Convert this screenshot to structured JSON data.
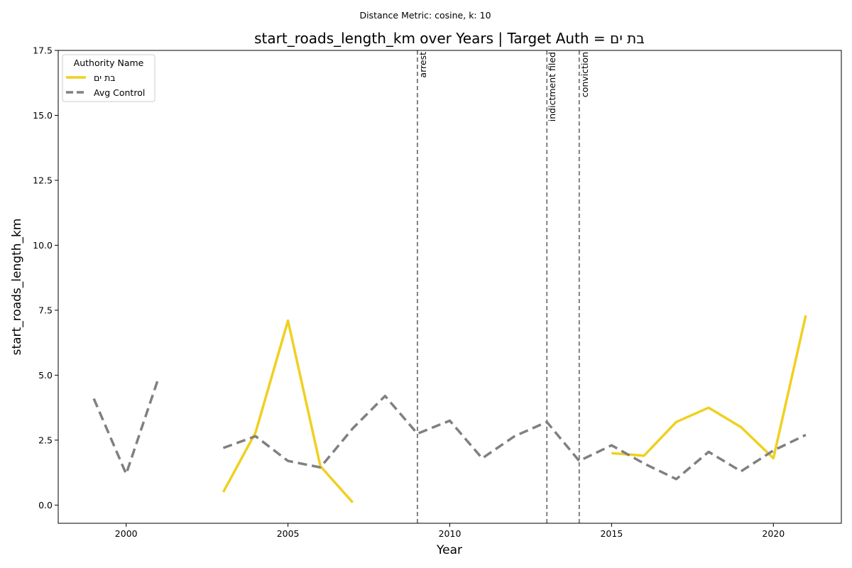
{
  "chart_data": {
    "type": "line",
    "suptitle": "Distance Metric: cosine, k: 10",
    "title": "start_roads_length_km over Years | Target Auth = בת ים",
    "xlabel": "Year",
    "ylabel": "start_roads_length_km",
    "xlim": [
      1997.9,
      2022.1
    ],
    "ylim": [
      -0.7,
      17.5
    ],
    "xticks": [
      2000,
      2005,
      2010,
      2015,
      2020
    ],
    "xtick_labels": [
      "2000",
      "2005",
      "2010",
      "2015",
      "2020"
    ],
    "yticks": [
      0.0,
      2.5,
      5.0,
      7.5,
      10.0,
      12.5,
      15.0,
      17.5
    ],
    "ytick_labels": [
      "0.0",
      "2.5",
      "5.0",
      "7.5",
      "10.0",
      "12.5",
      "15.0",
      "17.5"
    ],
    "grid": false,
    "legend": {
      "title": "Authority Name",
      "placement": "upper-left"
    },
    "series": [
      {
        "name": "בת ים",
        "color": "#f0d020",
        "style": "solid",
        "x": [
          2003,
          2004,
          2005,
          2006,
          2007,
          null,
          2015,
          2016,
          2017,
          2018,
          2019,
          2020,
          2021
        ],
        "y": [
          0.5,
          2.8,
          7.1,
          1.5,
          0.1,
          null,
          2.0,
          1.9,
          3.2,
          3.75,
          3.0,
          1.8,
          7.3
        ]
      },
      {
        "name": "Avg Control",
        "color": "#808080",
        "style": "dashed",
        "x": [
          1999,
          2000,
          2001,
          null,
          2003,
          2004,
          2005,
          2006,
          2007,
          2008,
          2009,
          2010,
          2011,
          2012,
          2013,
          2014,
          2015,
          2016,
          2017,
          2018,
          2019,
          2020,
          2021
        ],
        "y": [
          4.1,
          1.2,
          4.9,
          null,
          2.2,
          2.65,
          1.7,
          1.45,
          2.95,
          4.2,
          2.75,
          3.25,
          1.8,
          2.65,
          3.2,
          1.7,
          2.3,
          1.6,
          1.0,
          2.05,
          1.3,
          2.1,
          2.7
        ]
      }
    ],
    "events": [
      {
        "x": 2009,
        "label": "arrest"
      },
      {
        "x": 2013,
        "label": "indictment filed"
      },
      {
        "x": 2014,
        "label": "conviction"
      }
    ]
  }
}
